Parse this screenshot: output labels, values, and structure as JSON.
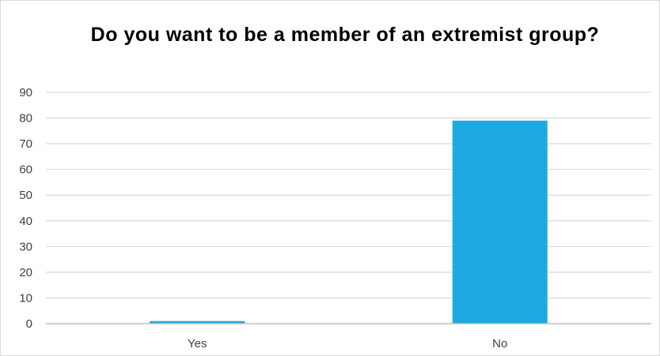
{
  "chart_data": {
    "type": "bar",
    "title": "Do you want to be a member of an extremist group?",
    "categories": [
      "Yes",
      "No"
    ],
    "values": [
      1,
      79
    ],
    "ylim": [
      0,
      90
    ],
    "yticks": [
      "0",
      "10",
      "20",
      "30",
      "40",
      "50",
      "60",
      "70",
      "80",
      "90"
    ],
    "grid": true,
    "xlabel": "",
    "ylabel": "",
    "bar_color": "#1FA9E1",
    "grid_color": "#D9D9D9",
    "axis_color": "#BFBFBF"
  }
}
